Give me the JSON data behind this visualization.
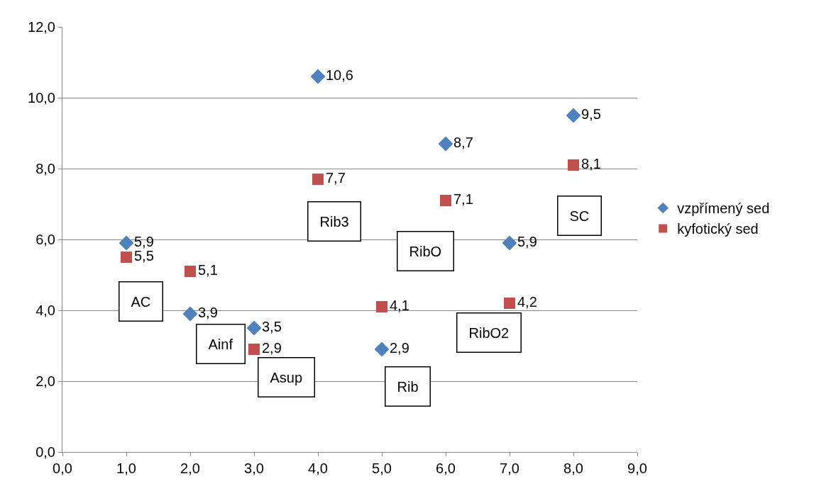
{
  "chart_data": {
    "type": "scatter",
    "x": [
      1,
      2,
      3,
      4,
      5,
      6,
      7,
      8
    ],
    "series": [
      {
        "name": "vzpřímený sed",
        "color": "#4f81bd",
        "marker": "diamond",
        "values": [
          5.9,
          3.9,
          3.5,
          10.6,
          2.9,
          8.7,
          5.9,
          9.5
        ],
        "value_labels": [
          "5,9",
          "3,9",
          "3,5",
          "10,6",
          "2,9",
          "8,7",
          "5,9",
          "9,5"
        ]
      },
      {
        "name": "kyfotický sed",
        "color": "#c0504d",
        "marker": "square",
        "values": [
          5.5,
          5.1,
          2.9,
          7.7,
          4.1,
          7.1,
          4.2,
          8.1
        ],
        "value_labels": [
          "5,5",
          "5,1",
          "2,9",
          "7,7",
          "4,1",
          "7,1",
          "4,2",
          "8,1"
        ]
      }
    ],
    "xlim": [
      0,
      9
    ],
    "xticks": [
      {
        "value": 0,
        "label": "0,0"
      },
      {
        "value": 1,
        "label": "1,0"
      },
      {
        "value": 2,
        "label": "2,0"
      },
      {
        "value": 3,
        "label": "3,0"
      },
      {
        "value": 4,
        "label": "4,0"
      },
      {
        "value": 5,
        "label": "5,0"
      },
      {
        "value": 6,
        "label": "6,0"
      },
      {
        "value": 7,
        "label": "7,0"
      },
      {
        "value": 8,
        "label": "8,0"
      },
      {
        "value": 9,
        "label": "9,0"
      }
    ],
    "ylim": [
      0,
      12
    ],
    "yticks": [
      {
        "value": 0,
        "label": "0,0"
      },
      {
        "value": 2,
        "label": "2,0"
      },
      {
        "value": 4,
        "label": "4,0"
      },
      {
        "value": 6,
        "label": "6,0"
      },
      {
        "value": 8,
        "label": "8,0"
      },
      {
        "value": 10,
        "label": "10,0"
      },
      {
        "value": 12,
        "label": "12,0"
      }
    ],
    "grid": "y",
    "legend": "right",
    "annotations": [
      "AC",
      "Ainf",
      "Asup",
      "Rib3",
      "Rib",
      "RibO",
      "RibO2",
      "SC"
    ]
  }
}
